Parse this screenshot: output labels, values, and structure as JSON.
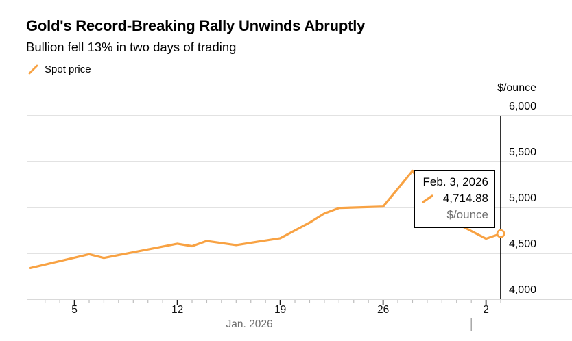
{
  "tooltip": {
    "date": "Feb. 3, 2026",
    "value": "4,714.88",
    "unit": "$/ounce"
  },
  "colors": {
    "accent": "#F8A243",
    "grid": "#D9D9D9",
    "axis_baseline": "#D9D9D9",
    "tick_minor": "#BDBDBD",
    "tick_major": "#1A1A1A",
    "crosshair": "#000000",
    "month_separator": "#9A9A9A",
    "muted_text": "#6F6F6F"
  },
  "chart_data": {
    "type": "line",
    "title": "Gold's Record-Breaking Rally Unwinds Abruptly",
    "subtitle": "Bullion fell 13% in two days of trading",
    "ylabel": "$/ounce",
    "ylim": [
      4000,
      6000
    ],
    "grid": true,
    "legend_position": "top-left",
    "y_ticks": [
      {
        "value": 6000,
        "label": "6,000"
      },
      {
        "value": 5500,
        "label": "5,500"
      },
      {
        "value": 5000,
        "label": "5,000"
      },
      {
        "value": 4500,
        "label": "4,500"
      },
      {
        "value": 4000,
        "label": "4,000"
      }
    ],
    "x_axis": {
      "month_label": "Jan. 2026",
      "tick_days": {
        "start": 3,
        "end": 34
      },
      "major_ticks": [
        {
          "day": 5,
          "label": "5"
        },
        {
          "day": 12,
          "label": "12"
        },
        {
          "day": 19,
          "label": "19"
        },
        {
          "day": 26,
          "label": "26"
        },
        {
          "day": 33,
          "label": "2"
        }
      ],
      "month_boundary_day": 32
    },
    "series": [
      {
        "name": "Spot price",
        "color": "#F8A243",
        "points": [
          {
            "date": "Jan 2",
            "day": 2,
            "value": 4340
          },
          {
            "date": "Jan 6",
            "day": 6,
            "value": 4490
          },
          {
            "date": "Jan 7",
            "day": 7,
            "value": 4450
          },
          {
            "date": "Jan 12",
            "day": 12,
            "value": 4605
          },
          {
            "date": "Jan 13",
            "day": 13,
            "value": 4578
          },
          {
            "date": "Jan 14",
            "day": 14,
            "value": 4635
          },
          {
            "date": "Jan 16",
            "day": 16,
            "value": 4590
          },
          {
            "date": "Jan 19",
            "day": 19,
            "value": 4665
          },
          {
            "date": "Jan 21",
            "day": 21,
            "value": 4835
          },
          {
            "date": "Jan 22",
            "day": 22,
            "value": 4935
          },
          {
            "date": "Jan 23",
            "day": 23,
            "value": 4995
          },
          {
            "date": "Jan 26",
            "day": 26,
            "value": 5010
          },
          {
            "date": "Jan 28",
            "day": 28,
            "value": 5400
          },
          {
            "date": "Jan 30",
            "day": 30,
            "value": 4910
          },
          {
            "date": "Feb 2",
            "day": 33,
            "value": 4660
          },
          {
            "date": "Feb 3",
            "day": 34,
            "value": 4714.88
          }
        ]
      }
    ],
    "highlight_point": {
      "date": "Feb. 3, 2026",
      "day": 34,
      "value": 4714.88,
      "unit": "$/ounce"
    }
  }
}
